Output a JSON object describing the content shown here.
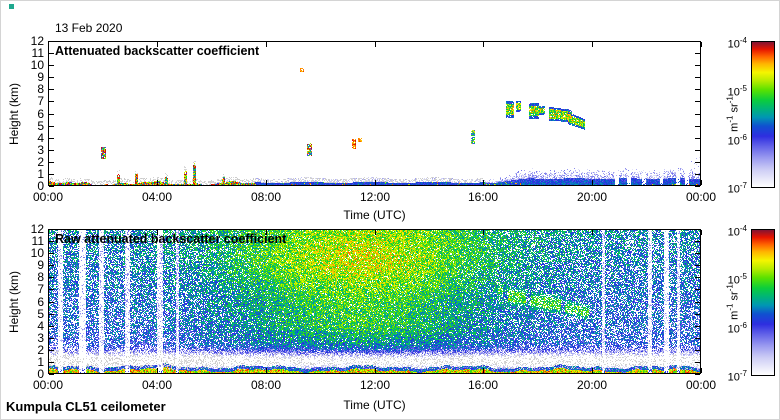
{
  "chart_data": {
    "type": "heatmap",
    "title_date": "13 Feb 2020",
    "footer": "Kumpula CL51 ceilometer",
    "x_axis": {
      "label": "Time (UTC)",
      "tick_labels": [
        "00:00",
        "04:00",
        "08:00",
        "12:00",
        "16:00",
        "20:00",
        "00:00"
      ],
      "tick_hours": [
        0,
        4,
        8,
        12,
        16,
        20,
        24
      ],
      "range_hours": [
        0,
        24
      ]
    },
    "y_axis": {
      "label": "Height (km)",
      "tick_values": [
        0,
        1,
        2,
        3,
        4,
        5,
        6,
        7,
        8,
        9,
        10,
        11,
        12
      ],
      "range_km": [
        0,
        12
      ]
    },
    "colorbar": {
      "scale": "log",
      "range": [
        "1e-7",
        "1e-4"
      ],
      "unit_parts": [
        {
          "t": "m",
          "sup": false
        },
        {
          "t": "-1",
          "sup": true
        },
        {
          "t": " sr",
          "sup": false
        },
        {
          "t": "-1",
          "sup": true
        }
      ],
      "ticks": [
        {
          "base": "10",
          "exp": "-4"
        },
        {
          "base": "10",
          "exp": "-5"
        },
        {
          "base": "10",
          "exp": "-6"
        },
        {
          "base": "10",
          "exp": "-7"
        }
      ],
      "stops": [
        [
          0,
          "#ffffff"
        ],
        [
          0.05,
          "#ebebfa"
        ],
        [
          0.12,
          "#cdcdf5"
        ],
        [
          0.2,
          "#9b9bf0"
        ],
        [
          0.28,
          "#6363e8"
        ],
        [
          0.35,
          "#2e2ee0"
        ],
        [
          0.42,
          "#1050d0"
        ],
        [
          0.48,
          "#0096b4"
        ],
        [
          0.54,
          "#00b478"
        ],
        [
          0.6,
          "#0ccd3c"
        ],
        [
          0.67,
          "#5ae100"
        ],
        [
          0.73,
          "#b4eb00"
        ],
        [
          0.79,
          "#f5f500"
        ],
        [
          0.85,
          "#ffb400"
        ],
        [
          0.9,
          "#ff6400"
        ],
        [
          0.95,
          "#e61400"
        ],
        [
          1,
          "#821432"
        ]
      ]
    },
    "panels": [
      {
        "title": "Attenuated backscatter coefficient",
        "kind": "processed",
        "clouds": [
          [
            16.85,
            17.08,
            5.75,
            7.0,
            5.75,
            7.0
          ],
          [
            17.22,
            17.33,
            6.2,
            7.05,
            6.2,
            7.05
          ],
          [
            17.7,
            17.98,
            5.65,
            6.9,
            5.65,
            6.9
          ],
          [
            18.05,
            18.22,
            5.95,
            6.6,
            5.95,
            6.6
          ],
          [
            18.45,
            19.22,
            5.5,
            6.55,
            5.35,
            6.3
          ],
          [
            19.12,
            19.68,
            5.2,
            6.1,
            4.75,
            5.55
          ]
        ],
        "streaks": [
          [
            1.98,
            2.06,
            2.3,
            3.25,
            "multi"
          ],
          [
            9.28,
            9.35,
            9.55,
            9.78,
            "orange"
          ],
          [
            9.55,
            9.63,
            2.55,
            3.6,
            "multi"
          ],
          [
            11.18,
            11.27,
            3.15,
            3.9,
            "warm"
          ],
          [
            11.42,
            11.49,
            3.7,
            3.97,
            "orange"
          ],
          [
            15.55,
            15.65,
            3.6,
            4.65,
            "cool"
          ]
        ],
        "surface": {
          "multicolor_until": 7.6,
          "blue_until": 16,
          "max_top_km": 1.45,
          "spikes": [
            [
              2.6,
              0.95
            ],
            [
              3.25,
              1.1
            ],
            [
              4.35,
              0.85
            ],
            [
              5.05,
              1.3
            ],
            [
              5.38,
              1.95
            ],
            [
              6.45,
              0.75
            ]
          ],
          "gaps": [
            20.9,
            21.35,
            21.9,
            22.55,
            23.15,
            23.5
          ],
          "right_blob_from": 23.55
        }
      },
      {
        "title": "Raw attenuated backscatter coefficient",
        "kind": "raw",
        "clouds": [
          [
            16.55,
            16.72,
            6.6,
            7.15,
            6.6,
            7.15
          ],
          [
            16.9,
            17.55,
            6.0,
            6.9,
            5.9,
            6.7
          ],
          [
            17.75,
            18.85,
            5.6,
            6.5,
            5.3,
            6.2
          ],
          [
            19.0,
            19.9,
            5.1,
            5.9,
            4.7,
            5.4
          ]
        ],
        "stripes": [
          [
            0.45,
            5,
            0.8
          ],
          [
            1.25,
            7,
            0.75
          ],
          [
            1.95,
            5,
            0.65
          ],
          [
            2.9,
            5,
            0.6
          ],
          [
            4.1,
            6,
            0.65
          ],
          [
            4.75,
            3,
            0.5
          ],
          [
            20.4,
            3,
            0.45
          ],
          [
            22.1,
            4,
            0.65
          ],
          [
            22.7,
            5,
            0.75
          ],
          [
            23.15,
            3,
            0.6
          ]
        ],
        "noise": {
          "base": 0.34,
          "day_peak_hour": 11.5,
          "day_sigma": 4.8,
          "elev_peak_km": 9.3,
          "atten_center_km": 1.05,
          "atten_sigma_km": 0.78,
          "atten_depth": 0.48
        }
      }
    ],
    "style": {
      "background": "#ffffff",
      "frame_color": "#000000",
      "text_color": "#000000",
      "gray_speckle": "#d3d3d3"
    }
  }
}
